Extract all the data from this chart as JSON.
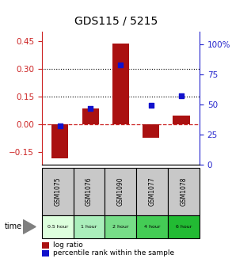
{
  "title": "GDS115 / 5215",
  "samples": [
    "GSM1075",
    "GSM1076",
    "GSM1090",
    "GSM1077",
    "GSM1078"
  ],
  "time_labels": [
    "0.5 hour",
    "1 hour",
    "2 hour",
    "4 hour",
    "6 hour"
  ],
  "time_colors": [
    "#ccffcc",
    "#99ee99",
    "#66dd66",
    "#33cc33",
    "#00bb00"
  ],
  "log_ratio": [
    -0.185,
    0.085,
    0.435,
    -0.075,
    0.045
  ],
  "percentile_rank": [
    32,
    47,
    83,
    49,
    57
  ],
  "left_ylim": [
    -0.22,
    0.5
  ],
  "right_ylim": [
    0,
    110
  ],
  "left_yticks": [
    -0.15,
    0,
    0.15,
    0.3,
    0.45
  ],
  "right_yticks": [
    0,
    25,
    50,
    75,
    100
  ],
  "hlines": [
    0.15,
    0.3
  ],
  "bar_color": "#aa1111",
  "dot_color": "#1111cc",
  "bar_width": 0.55,
  "legend_bar_label": "log ratio",
  "legend_dot_label": "percentile rank within the sample",
  "xlabel": "time",
  "background_color": "#f0f0f0",
  "plot_bg": "#ffffff"
}
